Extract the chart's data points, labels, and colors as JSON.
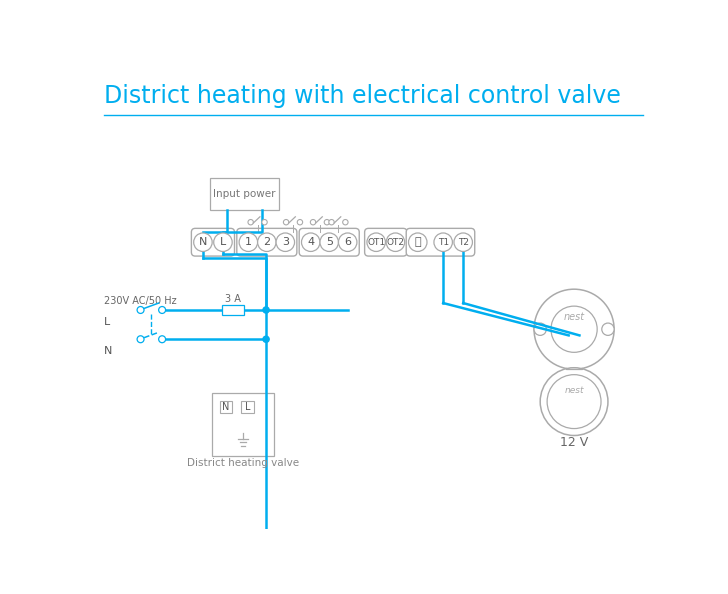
{
  "title": "District heating with electrical control valve",
  "title_color": "#00AEEF",
  "title_fontsize": 17,
  "line_color": "#00AEEF",
  "bg_color": "#ffffff",
  "wire_lw": 1.8,
  "input_power_label": "Input power",
  "ac_label": "230V AC/50 Hz",
  "L_label": "L",
  "N_label": "N",
  "fuse_label": "3 A",
  "valve_label": "District heating valve",
  "nest_text": "nest",
  "twelve_v_label": "12 V",
  "gc": "#aaaaaa"
}
